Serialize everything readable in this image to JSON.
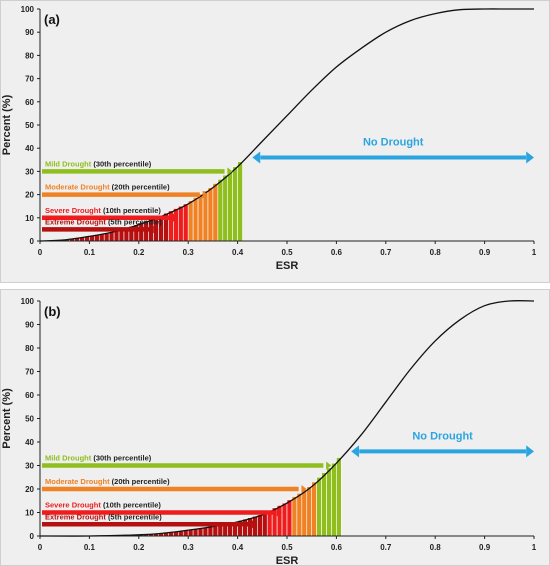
{
  "chart_data": [
    {
      "type": "line",
      "panel_label": "(a)",
      "xlabel": "ESR",
      "ylabel": "Percent (%)",
      "xlim": [
        0,
        1
      ],
      "ylim": [
        0,
        100
      ],
      "xticks": [
        "0",
        "0.1",
        "0.2",
        "0.3",
        "0.4",
        "0.5",
        "0.6",
        "0.7",
        "0.8",
        "0.9",
        "1"
      ],
      "yticks": [
        "0",
        "10",
        "20",
        "30",
        "40",
        "50",
        "60",
        "70",
        "80",
        "90",
        "100"
      ],
      "grid": false,
      "series": [
        {
          "x": [
            0,
            0.05,
            0.1,
            0.15,
            0.2,
            0.25,
            0.3,
            0.35,
            0.4,
            0.45,
            0.5,
            0.55,
            0.6,
            0.65,
            0.7,
            0.75,
            0.8,
            0.85,
            0.9,
            0.95,
            1.0
          ],
          "y": [
            0,
            0.5,
            2,
            4,
            7,
            11,
            16,
            23,
            32,
            43,
            54,
            65,
            75,
            83,
            90,
            95,
            98,
            99.7,
            100,
            100,
            100
          ]
        }
      ],
      "categories": [
        {
          "name": "Mild Drought",
          "note": "(30th percentile)",
          "percentile": 30,
          "color": "#8fbe1e",
          "label_color": "#8fbe1e",
          "x_start": 0.36,
          "x_end": 0.41
        },
        {
          "name": "Moderate Drought",
          "note": "(20th percentile)",
          "percentile": 20,
          "color": "#ef8225",
          "label_color": "#ef8225",
          "x_start": 0.3,
          "x_end": 0.36
        },
        {
          "name": "Severe Drought",
          "note": "(10th percentile)",
          "percentile": 10,
          "color": "#ee1c1c",
          "label_color": "#ee1c1c",
          "x_start": 0.26,
          "x_end": 0.3
        },
        {
          "name": "Extreme Drought",
          "note": "(5th percentile)",
          "percentile": 5,
          "color": "#b50f0f",
          "label_color": "#b50f0f",
          "x_start": 0,
          "x_end": 0.26
        }
      ],
      "no_drought": {
        "label": "No Drought",
        "x_start": 0.43,
        "x_end": 1.0,
        "y": 36,
        "color": "#2aa5e0"
      }
    },
    {
      "type": "line",
      "panel_label": "(b)",
      "xlabel": "ESR",
      "ylabel": "Percent (%)",
      "xlim": [
        0,
        1
      ],
      "ylim": [
        0,
        100
      ],
      "xticks": [
        "0",
        "0.1",
        "0.2",
        "0.3",
        "0.4",
        "0.5",
        "0.6",
        "0.7",
        "0.8",
        "0.9",
        "1"
      ],
      "yticks": [
        "0",
        "10",
        "20",
        "30",
        "40",
        "50",
        "60",
        "70",
        "80",
        "90",
        "100"
      ],
      "grid": false,
      "series": [
        {
          "x": [
            0,
            0.1,
            0.2,
            0.25,
            0.3,
            0.35,
            0.4,
            0.45,
            0.5,
            0.55,
            0.6,
            0.65,
            0.7,
            0.75,
            0.8,
            0.85,
            0.9,
            0.95,
            1.0
          ],
          "y": [
            0,
            0,
            0.5,
            1.2,
            2.5,
            4,
            6,
            9,
            14,
            21,
            31,
            43,
            57,
            71,
            83,
            92,
            98,
            100,
            100
          ]
        }
      ],
      "categories": [
        {
          "name": "Mild Drought",
          "note": "(30th percentile)",
          "percentile": 30,
          "color": "#8fbe1e",
          "label_color": "#8fbe1e",
          "x_start": 0.56,
          "x_end": 0.61
        },
        {
          "name": "Moderate Drought",
          "note": "(20th percentile)",
          "percentile": 20,
          "color": "#ef8225",
          "label_color": "#ef8225",
          "x_start": 0.51,
          "x_end": 0.56
        },
        {
          "name": "Severe Drought",
          "note": "(10th percentile)",
          "percentile": 10,
          "color": "#ee1c1c",
          "label_color": "#ee1c1c",
          "x_start": 0.46,
          "x_end": 0.51
        },
        {
          "name": "Extreme Drought",
          "note": "(5th percentile)",
          "percentile": 5,
          "color": "#b50f0f",
          "label_color": "#b50f0f",
          "x_start": 0,
          "x_end": 0.46
        }
      ],
      "no_drought": {
        "label": "No Drought",
        "x_start": 0.63,
        "x_end": 1.0,
        "y": 36,
        "color": "#2aa5e0"
      }
    }
  ]
}
